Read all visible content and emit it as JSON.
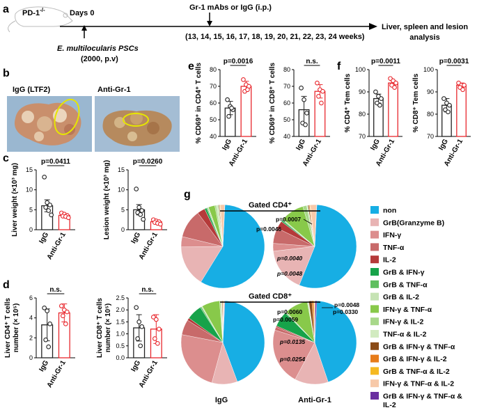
{
  "colors": {
    "igg": "#222222",
    "anti": "#e8272d",
    "bg": "#ffffff"
  },
  "panel_a": {
    "letter": "a",
    "mouse_label": "PD-1",
    "mouse_sup": "-/-",
    "days_label": "Days 0",
    "treatment_label": "Gr-1 mAbs or IgG (i.p.)",
    "weeks_label": "(13, 14, 15, 16, 17, 18, 19, 20, 21, 22, 23, 24 weeks)",
    "endpoint_line1": "Liver, spleen and lesion",
    "endpoint_line2": "analysis",
    "inoculum_line1": "E. multilocularis PSCs",
    "inoculum_line2": "(2000, p.v)"
  },
  "panel_b": {
    "letter": "b",
    "photo1_label": "IgG (LTF2)",
    "photo2_label": "Anti-Gr-1"
  },
  "groups": [
    "IgG",
    "Anti-Gr-1"
  ],
  "chart_data": [
    {
      "id": "c1",
      "panel": "c",
      "type": "bar",
      "categories": [
        "IgG",
        "Anti-Gr-1"
      ],
      "ylabel": "Liver weight (×10³ mg)",
      "ylim": [
        0,
        15
      ],
      "yticks": [
        0,
        5,
        10,
        15
      ],
      "pvalue": "p=0.0411",
      "means": [
        6.0,
        3.6
      ],
      "errors": [
        1.5,
        0.3
      ],
      "points": [
        [
          13.2,
          6.8,
          6.2,
          5.6,
          4.8,
          3.7
        ],
        [
          4.2,
          3.9,
          3.6,
          3.4,
          3.3,
          3.0
        ]
      ]
    },
    {
      "id": "c2",
      "panel": "c",
      "type": "bar",
      "categories": [
        "IgG",
        "Anti-Gr-1"
      ],
      "ylabel": "Lesion weight (×10³ mg)",
      "ylim": [
        0,
        15
      ],
      "yticks": [
        0,
        5,
        10,
        15
      ],
      "pvalue": "p=0.0260",
      "means": [
        5.0,
        2.0
      ],
      "errors": [
        1.3,
        0.3
      ],
      "points": [
        [
          10.2,
          5.6,
          4.8,
          4.3,
          3.8,
          2.6
        ],
        [
          2.5,
          2.2,
          2.0,
          1.8,
          1.6,
          1.4
        ]
      ]
    },
    {
      "id": "d1",
      "panel": "d",
      "type": "bar",
      "categories": [
        "IgG",
        "Anti-Gr-1"
      ],
      "ylabel": "Liver CD4⁺ T cells number (× 10⁵)",
      "ylim": [
        0,
        6
      ],
      "yticks": [
        0,
        2,
        4,
        6
      ],
      "pvalue": "n.s.",
      "means": [
        3.3,
        4.5
      ],
      "errors": [
        1.6,
        0.9
      ],
      "points": [
        [
          5.0,
          4.7,
          3.4,
          1.8,
          1.1
        ],
        [
          5.2,
          4.8,
          4.6,
          4.2,
          3.4
        ]
      ]
    },
    {
      "id": "d2",
      "panel": "d",
      "type": "bar",
      "categories": [
        "IgG",
        "Anti-Gr-1"
      ],
      "ylabel": "Liver CD8⁺ T cells number (× 10⁵)",
      "ylim": [
        0,
        2.5
      ],
      "yticks": [
        0.0,
        0.5,
        1.0,
        1.5,
        2.0,
        2.5
      ],
      "pvalue": "n.s.",
      "means": [
        1.25,
        1.2
      ],
      "errors": [
        0.55,
        0.6
      ],
      "points": [
        [
          2.1,
          1.5,
          1.3,
          0.8,
          0.5
        ],
        [
          1.7,
          1.6,
          1.2,
          0.8,
          0.6
        ]
      ]
    },
    {
      "id": "e1",
      "panel": "e",
      "type": "bar",
      "categories": [
        "IgG",
        "Anti-Gr-1"
      ],
      "ylabel": "% CD69⁺ in CD4⁺ T cells",
      "ylim": [
        40,
        80
      ],
      "yticks": [
        40,
        50,
        60,
        70,
        80
      ],
      "pvalue": "p=0.0016",
      "means": [
        57,
        70
      ],
      "errors": [
        4,
        3
      ],
      "points": [
        [
          62,
          58,
          56,
          52,
          57
        ],
        [
          74,
          71,
          70,
          67,
          68
        ]
      ]
    },
    {
      "id": "e2",
      "panel": "e",
      "type": "bar",
      "categories": [
        "IgG",
        "Anti-Gr-1"
      ],
      "ylabel": "% CD69⁺ in CD8⁺ T cells",
      "ylim": [
        40,
        80
      ],
      "yticks": [
        40,
        50,
        60,
        70,
        80
      ],
      "pvalue": "n.s.",
      "means": [
        56,
        67
      ],
      "errors": [
        8,
        4
      ],
      "points": [
        [
          69,
          62,
          54,
          48,
          47
        ],
        [
          72,
          68,
          67,
          64,
          60
        ]
      ]
    },
    {
      "id": "f1",
      "panel": "f",
      "type": "bar",
      "categories": [
        "IgG",
        "Anti-Gr-1"
      ],
      "ylabel": "% CD4⁺ Tem cells",
      "ylim": [
        70,
        100
      ],
      "yticks": [
        70,
        80,
        90,
        100
      ],
      "pvalue": "p=0.0011",
      "means": [
        87,
        94
      ],
      "errors": [
        2,
        1
      ],
      "points": [
        [
          90,
          88,
          87,
          85,
          84
        ],
        [
          96,
          95,
          94,
          93,
          92
        ]
      ]
    },
    {
      "id": "f2",
      "panel": "f",
      "type": "bar",
      "categories": [
        "IgG",
        "Anti-Gr-1"
      ],
      "ylabel": "% CD8⁺ Tem cells",
      "ylim": [
        70,
        100
      ],
      "yticks": [
        70,
        80,
        90,
        100
      ],
      "pvalue": "p=0.0031",
      "means": [
        84,
        93
      ],
      "errors": [
        3,
        1
      ],
      "points": [
        [
          87,
          85,
          84,
          82,
          81
        ],
        [
          94,
          93,
          93,
          92,
          91
        ]
      ]
    },
    {
      "id": "g",
      "panel": "g",
      "type": "pie",
      "legend": [
        "non",
        "GrB(Granzyme B)",
        "IFN-γ",
        "TNF-α",
        "IL-2",
        "GrB & IFN-γ",
        "GrB & TNF-α",
        "GrB & IL-2",
        "IFN-γ & TNF-α",
        "IFN-γ & IL-2",
        "TNF-α & IL-2",
        "GrB & IFN-γ & TNF-α",
        "GrB & IFN-γ & IL-2",
        "GrB & TNF-α & IL-2",
        "IFN-γ & TNF-α & IL-2",
        "GrB & IFN-γ & TNF-α & IL-2"
      ],
      "legend_colors": [
        "#17aee4",
        "#e8b4b4",
        "#dc8e8e",
        "#c86a6a",
        "#b53a3a",
        "#17a34a",
        "#5fbf5f",
        "#c6e3b4",
        "#88c94a",
        "#a8d88a",
        "#d2ebc0",
        "#8a4a16",
        "#e77c1a",
        "#f5b921",
        "#f7c9a9",
        "#6a2fa0"
      ],
      "gated_cd4_title": "Gated CD4⁺",
      "gated_cd8_title": "Gated CD8⁺",
      "cd4_igg": [
        58,
        16,
        4,
        11,
        3,
        0.8,
        0.4,
        0.4,
        2.5,
        0.6,
        0.9,
        0.3,
        0.2,
        0.2,
        1.6,
        0.1
      ],
      "cd4_anti": [
        55,
        17,
        3,
        6,
        3,
        0.5,
        0.3,
        0.3,
        9,
        1.5,
        0.5,
        0.4,
        0.3,
        0.2,
        2.4,
        0.1
      ],
      "cd8_igg": [
        44,
        10,
        24,
        6,
        1,
        6,
        0.5,
        0.4,
        7,
        0.5,
        0.4,
        0.3,
        0.2,
        0.2,
        0.3,
        0.2
      ],
      "cd8_anti": [
        44,
        13,
        22,
        1.2,
        0.5,
        6,
        0.3,
        0.3,
        9,
        0.3,
        0.3,
        1.2,
        0.7,
        0.3,
        0.3,
        0.6
      ],
      "cd4_pvalues": [
        "p=0.0007",
        "p=0.0046",
        "p=0.0040",
        "p=0.0048"
      ],
      "cd8_pvalues": [
        "p=0.0048",
        "p=0.0060",
        "p=0.0330",
        "p=0.0059",
        "p=0.0135",
        "p=0.0254"
      ],
      "pie_labels": [
        "IgG",
        "Anti-Gr-1"
      ]
    }
  ]
}
